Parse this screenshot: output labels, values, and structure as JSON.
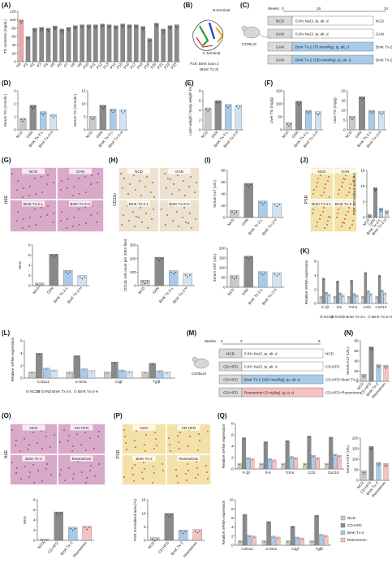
{
  "panel_letters": [
    "(A)",
    "(B)",
    "(C)",
    "(D)",
    "(E)",
    "(F)",
    "(G)",
    "(H)",
    "(I)",
    "(J)",
    "(K)",
    "(L)",
    "(M)",
    "(N)",
    "(O)",
    "(P)",
    "(Q)"
  ],
  "colors": {
    "ncd": "#c9c9c9",
    "gan": "#8a8a8a",
    "bmk_l": "#a9cbe8",
    "bmk_h": "#cfe3f3",
    "pa": "#f7a3a3",
    "resmetrom": "#f7c1c1",
    "he_bg": "#d9a9c9",
    "psr_bg": "#f3e2a8",
    "cd11b_bg": "#ede1cf"
  },
  "panelA": {
    "ylabel": "TG contents (mg/dL)",
    "yticks": [
      "0",
      "20",
      "40",
      "60",
      "80",
      "100",
      "120"
    ],
    "categories": [
      "PA",
      "P1",
      "P2",
      "P3",
      "P4",
      "P5",
      "P6",
      "P7",
      "P8",
      "P9",
      "P10",
      "P11",
      "P12",
      "P13",
      "P14",
      "P15",
      "P16",
      "P17",
      "P18",
      "P19",
      "P20",
      "P21",
      "P22",
      "P23"
    ]
  },
  "panelB": {
    "n_terminal": "N-terminal",
    "c_terminal": "C-terminal",
    "caption_line1": "P19: BmK toxin 2",
    "caption_line2": "(BmK Tx-2)"
  },
  "panelC": {
    "weeks_label": "Weeks",
    "w0": "0",
    "w16": "16",
    "w24": "24",
    "mouse_label": "C57BL/6",
    "rows": [
      {
        "left": "NCD",
        "right_text": "0.9% NaCl, ip, alt. d",
        "group": "NCD"
      },
      {
        "left": "GAN",
        "right_text": "0.9% NaCl, ip, alt. d",
        "group": "GAN"
      },
      {
        "left": "GAN",
        "right_text": "BmK Tx-2 (75 nmol/kg), ip, alt. d",
        "group": "BmK Tx-2-L"
      },
      {
        "left": "GAN",
        "right_text": "BmK Tx-2 (150 nmol/kg), ip, alt. d",
        "group": "BmK Tx-2-H"
      }
    ]
  },
  "panelD": {
    "ylabel1": "Serum TG (mmol/L)",
    "yticks1": [
      "0",
      "1",
      "2",
      "3"
    ],
    "ylabel2": "Serum TC (mmol/L)",
    "yticks2": [
      "0",
      "5",
      "10",
      "15"
    ]
  },
  "panelE": {
    "ylabel": "Liver weight / Body weight (%)",
    "yticks": [
      "0",
      "2",
      "4",
      "6",
      "8"
    ]
  },
  "panelF": {
    "ylabel1": "Liver TG (mg/g)",
    "yticks1": [
      "0",
      "50",
      "100",
      "150"
    ],
    "ylabel2": "Liver TC (mg/g)",
    "yticks2": [
      "0",
      "5",
      "10",
      "15",
      "20"
    ]
  },
  "groups4": [
    "NCD",
    "GAN",
    "BmK Tx-2-L",
    "BmK Tx-2-H"
  ],
  "groups_cd": [
    "NCD",
    "CD-HFD",
    "BmK Tx-2",
    "Resmetrom"
  ],
  "panelG": {
    "stain": "H&E",
    "labels": [
      "NCD",
      "GAN",
      "BmK Tx-2-L",
      "BmK Tx-2-H"
    ],
    "nas_label": "NAS",
    "nas_ticks": [
      "0",
      "2",
      "4",
      "6",
      "8"
    ]
  },
  "panelH": {
    "stain": "CD11b",
    "labels": [
      "NCD",
      "GAN",
      "BmK Tx-2-L",
      "BmK Tx-2-H"
    ],
    "ylabel": "CD11b cell count per 200X field",
    "yticks": [
      "0",
      "100",
      "200",
      "300"
    ]
  },
  "panelI": {
    "ylabel1": "Serum ALT (U/L)",
    "yticks1": [
      "0",
      "20",
      "40",
      "60",
      "80"
    ],
    "ylabel2": "Serum AST (U/L)",
    "yticks2": [
      "0",
      "50",
      "100",
      "150",
      "200"
    ]
  },
  "panelJ": {
    "stain": "PSR",
    "labels": [
      "NCD",
      "GAN",
      "BmK Tx-2-L",
      "BmK Tx-2-H"
    ],
    "ylabel": "PSR normalized area (%)",
    "yticks": [
      "0",
      "5",
      "10",
      "15"
    ]
  },
  "panelK": {
    "ylabel": "Relative mRNA expression",
    "yticks": [
      "0",
      "2",
      "4",
      "6"
    ],
    "genes": [
      "Il-1β",
      "Il-6",
      "Tnf-α",
      "Ccl2",
      "Cxcl10"
    ],
    "legend": [
      "NCD",
      "GAN",
      "BmK Tx-2-L",
      "BmK Tx-2-H"
    ]
  },
  "panelL": {
    "ylabel": "Relative mRNA expression",
    "yticks": [
      "0",
      "2",
      "4",
      "6"
    ],
    "genes": [
      "Col1α1",
      "α-Sma",
      "Ctgf",
      "Tgfβ"
    ],
    "legend": [
      "NCD",
      "GAN",
      "BmK Tx-2-L",
      "BmK Tx-2-H"
    ]
  },
  "panelM": {
    "weeks_label": "Weeks",
    "w0": "0",
    "w3": "3",
    "w9": "9",
    "mouse_label": "C57BL/6",
    "rows": [
      {
        "left": "NCD",
        "right_text": "0.9% NaCl, ip, alt. d",
        "group": "NCD"
      },
      {
        "left": "CD-HFD",
        "right_text": "0.9% NaCl, ip, alt. d",
        "group": "CD-HFD"
      },
      {
        "left": "CD-HFD",
        "right_text": "BmK Tx-2 (150 nmol/kg), ip, alt. d",
        "group": "CD-HFD+BmK Tx-2"
      },
      {
        "left": "CD-HFD",
        "right_text": "Resmetrom (3 mg/kg), ig, q. d",
        "group": "CD-HFD+Resmetrom"
      }
    ]
  },
  "panelN": {
    "ylabel": "Serum ALT (U/L)",
    "yticks": [
      "0",
      "20",
      "40",
      "60",
      "80"
    ]
  },
  "panelN2": {
    "ylabel": "Serum AST (U/L)",
    "yticks": [
      "0",
      "50",
      "100",
      "150",
      "200"
    ]
  },
  "panelO": {
    "stain": "H&E",
    "labels": [
      "NCD",
      "CD-HFD",
      "BmK Tx-2",
      "Resmetrom"
    ],
    "nas_label": "NAS",
    "nas_ticks": [
      "0",
      "2",
      "4",
      "6",
      "8"
    ]
  },
  "panelP": {
    "stain": "PSR",
    "labels": [
      "NCD",
      "CD-HFD",
      "BmK Tx-2",
      "Resmetrom"
    ],
    "ylabel": "PSR normalized area (%)",
    "yticks": [
      "0",
      "5",
      "10",
      "15"
    ]
  },
  "panelQ": {
    "ylabel": "Relative mRNA expression",
    "yticks_top": [
      "0",
      "2",
      "4",
      "6",
      "8"
    ],
    "genes_top": [
      "Il-1β",
      "Il-6",
      "Tnf-α",
      "Ccl2",
      "Cxcl10"
    ],
    "yticks_bot": [
      "0",
      "2",
      "4",
      "6",
      "8",
      "10"
    ],
    "genes_bot": [
      "Col1α1",
      "α-Sma",
      "Ctgf",
      "Tgfβ"
    ],
    "legend": [
      "NCD",
      "CD-HFD",
      "BmK Tx-2",
      "Resmetrom"
    ]
  },
  "chart_data": [
    {
      "id": "A",
      "type": "bar",
      "ylim": [
        0,
        120
      ],
      "categories": [
        "PA",
        "P1",
        "P2",
        "P3",
        "P4",
        "P5",
        "P6",
        "P7",
        "P8",
        "P9",
        "P10",
        "P11",
        "P12",
        "P13",
        "P14",
        "P15",
        "P16",
        "P17",
        "P18",
        "P19",
        "P20",
        "P21",
        "P22",
        "P23"
      ],
      "values": [
        100,
        60,
        80,
        82,
        80,
        85,
        78,
        82,
        86,
        88,
        88,
        88,
        90,
        88,
        86,
        90,
        88,
        88,
        84,
        55,
        92,
        78,
        86,
        88
      ]
    },
    {
      "id": "D1",
      "type": "bar",
      "ylim": [
        0,
        3
      ],
      "categories": [
        "NCD",
        "GAN",
        "BmK Tx-2-L",
        "BmK Tx-2-H"
      ],
      "values": [
        0.9,
        1.9,
        1.4,
        1.2
      ]
    },
    {
      "id": "D2",
      "type": "bar",
      "ylim": [
        0,
        15
      ],
      "categories": [
        "NCD",
        "GAN",
        "BmK Tx-2-L",
        "BmK Tx-2-H"
      ],
      "values": [
        5.2,
        9.5,
        8.0,
        7.8
      ]
    },
    {
      "id": "E",
      "type": "bar",
      "ylim": [
        0,
        8
      ],
      "categories": [
        "NCD",
        "GAN",
        "BmK Tx-2-L",
        "BmK Tx-2-H"
      ],
      "values": [
        4.5,
        6.0,
        5.2,
        5.1
      ]
    },
    {
      "id": "F1",
      "type": "bar",
      "ylim": [
        0,
        150
      ],
      "categories": [
        "NCD",
        "GAN",
        "BmK Tx-2-L",
        "BmK Tx-2-H"
      ],
      "values": [
        28,
        110,
        75,
        70
      ]
    },
    {
      "id": "F2",
      "type": "bar",
      "ylim": [
        0,
        20
      ],
      "categories": [
        "NCD",
        "GAN",
        "BmK Tx-2-L",
        "BmK Tx-2-H"
      ],
      "values": [
        7,
        17,
        10,
        9.5
      ]
    },
    {
      "id": "G",
      "type": "bar",
      "ylim": [
        0,
        8
      ],
      "categories": [
        "NCD",
        "GAN",
        "BmK Tx-2-L",
        "BmK Tx-2-H"
      ],
      "values": [
        0.5,
        6.2,
        3.0,
        2.0
      ]
    },
    {
      "id": "H",
      "type": "bar",
      "ylim": [
        0,
        300
      ],
      "categories": [
        "NCD",
        "GAN",
        "BmK Tx-2-L",
        "BmK Tx-2-H"
      ],
      "values": [
        40,
        210,
        110,
        90
      ]
    },
    {
      "id": "I1",
      "type": "bar",
      "ylim": [
        0,
        80
      ],
      "categories": [
        "NCD",
        "GAN",
        "BmK Tx-2-L",
        "BmK Tx-2-H"
      ],
      "values": [
        12,
        58,
        28,
        24
      ]
    },
    {
      "id": "I2",
      "type": "bar",
      "ylim": [
        0,
        200
      ],
      "categories": [
        "NCD",
        "GAN",
        "BmK Tx-2-L",
        "BmK Tx-2-H"
      ],
      "values": [
        60,
        160,
        80,
        75
      ]
    },
    {
      "id": "J",
      "type": "bar",
      "ylim": [
        0,
        15
      ],
      "categories": [
        "NCD",
        "GAN",
        "BmK Tx-2-L",
        "BmK Tx-2-H"
      ],
      "values": [
        1.0,
        9.5,
        3.0,
        2.2
      ]
    },
    {
      "id": "K",
      "type": "bar",
      "ylim": [
        0,
        6
      ],
      "categories": [
        "Il-1β",
        "Il-6",
        "Tnf-α",
        "Ccl2",
        "Cxcl10"
      ],
      "series": [
        {
          "name": "NCD",
          "values": [
            1,
            1,
            1,
            1,
            1
          ]
        },
        {
          "name": "GAN",
          "values": [
            3.6,
            3.2,
            3.3,
            4.4,
            4.0
          ]
        },
        {
          "name": "BmK Tx-2-L",
          "values": [
            1.6,
            1.5,
            1.4,
            1.8,
            1.9
          ]
        },
        {
          "name": "BmK Tx-2-H",
          "values": [
            1.3,
            1.2,
            1.2,
            1.4,
            1.5
          ]
        }
      ]
    },
    {
      "id": "L",
      "type": "bar",
      "ylim": [
        0,
        6
      ],
      "categories": [
        "Col1α1",
        "α-Sma",
        "Ctgf",
        "Tgfβ"
      ],
      "series": [
        {
          "name": "NCD",
          "values": [
            1,
            1,
            1,
            1
          ]
        },
        {
          "name": "GAN",
          "values": [
            4.0,
            3.6,
            2.6,
            2.4
          ]
        },
        {
          "name": "BmK Tx-2-L",
          "values": [
            1.6,
            1.5,
            1.3,
            1.2
          ]
        },
        {
          "name": "BmK Tx-2-H",
          "values": [
            1.3,
            1.2,
            1.1,
            1.0
          ]
        }
      ]
    },
    {
      "id": "N1",
      "type": "bar",
      "ylim": [
        0,
        80
      ],
      "categories": [
        "NCD",
        "CD-HFD",
        "BmK Tx-2",
        "Resmetrom"
      ],
      "values": [
        14,
        68,
        33,
        32
      ]
    },
    {
      "id": "N2",
      "type": "bar",
      "ylim": [
        0,
        200
      ],
      "categories": [
        "NCD",
        "CD-HFD",
        "BmK Tx-2",
        "Resmetrom"
      ],
      "values": [
        45,
        160,
        85,
        80
      ]
    },
    {
      "id": "O",
      "type": "bar",
      "ylim": [
        0,
        8
      ],
      "categories": [
        "NCD",
        "CD-HFD",
        "BmK Tx-2",
        "Resmetrom"
      ],
      "values": [
        0.3,
        5.6,
        2.6,
        2.8
      ]
    },
    {
      "id": "P",
      "type": "bar",
      "ylim": [
        0,
        15
      ],
      "categories": [
        "NCD",
        "CD-HFD",
        "BmK Tx-2",
        "Resmetrom"
      ],
      "values": [
        1.0,
        10.0,
        3.8,
        4.0
      ]
    },
    {
      "id": "Q1",
      "type": "bar",
      "ylim": [
        0,
        8
      ],
      "categories": [
        "Il-1β",
        "Il-6",
        "Tnf-α",
        "Ccl2",
        "Cxcl10"
      ],
      "series": [
        {
          "name": "NCD",
          "values": [
            1,
            1,
            1,
            1,
            1
          ]
        },
        {
          "name": "CD-HFD",
          "values": [
            5.5,
            4.8,
            5.0,
            5.8,
            5.6
          ]
        },
        {
          "name": "BmK Tx-2",
          "values": [
            2.0,
            1.8,
            2.2,
            2.4,
            2.6
          ]
        },
        {
          "name": "Resmetrom",
          "values": [
            1.8,
            1.6,
            2.0,
            2.0,
            2.4
          ]
        }
      ]
    },
    {
      "id": "Q2",
      "type": "bar",
      "ylim": [
        0,
        10
      ],
      "categories": [
        "Col1α1",
        "α-Sma",
        "Ctgf",
        "Tgfβ"
      ],
      "series": [
        {
          "name": "NCD",
          "values": [
            1,
            1,
            1,
            1
          ]
        },
        {
          "name": "CD-HFD",
          "values": [
            6.8,
            5.2,
            4.2,
            6.6
          ]
        },
        {
          "name": "BmK Tx-2",
          "values": [
            2.2,
            2.0,
            1.8,
            2.4
          ]
        },
        {
          "name": "Resmetrom",
          "values": [
            2.0,
            1.8,
            1.6,
            2.2
          ]
        }
      ]
    }
  ]
}
